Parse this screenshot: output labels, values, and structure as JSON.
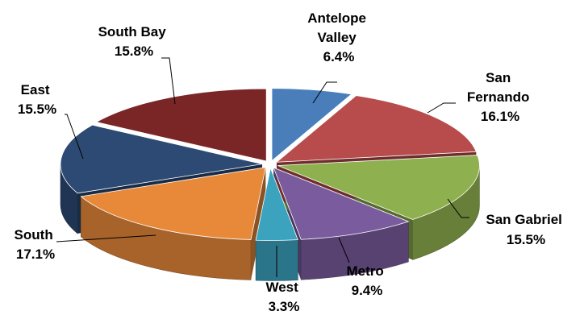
{
  "chart_data": {
    "type": "pie",
    "style": "3d-exploded-perspective",
    "title": "",
    "slices": [
      {
        "label": "Antelope Valley",
        "value": 6.4,
        "value_label": "6.4%",
        "color": "#4A7EBB"
      },
      {
        "label": "San Fernando",
        "value": 16.1,
        "value_label": "16.1%",
        "color": "#B84C4C"
      },
      {
        "label": "San Gabriel",
        "value": 15.5,
        "value_label": "15.5%",
        "color": "#8FB04E"
      },
      {
        "label": "Metro",
        "value": 9.4,
        "value_label": "9.4%",
        "color": "#7A5C9E"
      },
      {
        "label": "West",
        "value": 3.3,
        "value_label": "3.3%",
        "color": "#3CA3BF"
      },
      {
        "label": "South",
        "value": 17.1,
        "value_label": "17.1%",
        "color": "#E8893A"
      },
      {
        "label": "East",
        "value": 15.5,
        "value_label": "15.5%",
        "color": "#2C4A73"
      },
      {
        "label": "South Bay",
        "value": 15.8,
        "value_label": "15.8%",
        "color": "#7A2626"
      }
    ]
  }
}
